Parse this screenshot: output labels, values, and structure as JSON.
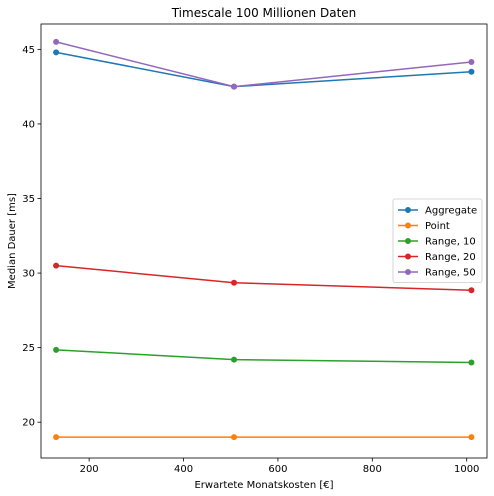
{
  "chart_data": {
    "type": "line",
    "title": "Timescale 100 Millionen Daten",
    "xlabel": "Erwartete Monatskosten [€]",
    "ylabel": "Median Dauer [ms]",
    "x": [
      130,
      507,
      1010
    ],
    "xlim": [
      98,
      1043
    ],
    "ylim": [
      17.6,
      46.7
    ],
    "xticks": [
      200,
      400,
      600,
      800,
      1000
    ],
    "yticks": [
      20,
      25,
      30,
      35,
      40,
      45
    ],
    "grid": false,
    "legend_position": "center-right",
    "series": [
      {
        "name": "Aggregate",
        "color": "#1f77b4",
        "values": [
          44.8,
          42.5,
          43.5
        ]
      },
      {
        "name": "Point",
        "color": "#ff7f0e",
        "values": [
          19.0,
          19.0,
          19.0
        ]
      },
      {
        "name": "Range, 10",
        "color": "#2ca02c",
        "values": [
          24.85,
          24.2,
          24.0
        ]
      },
      {
        "name": "Range, 20",
        "color": "#d62728",
        "values": [
          30.5,
          29.35,
          28.85
        ]
      },
      {
        "name": "Range, 50",
        "color": "#9467bd",
        "values": [
          45.5,
          42.5,
          44.15
        ]
      }
    ]
  }
}
